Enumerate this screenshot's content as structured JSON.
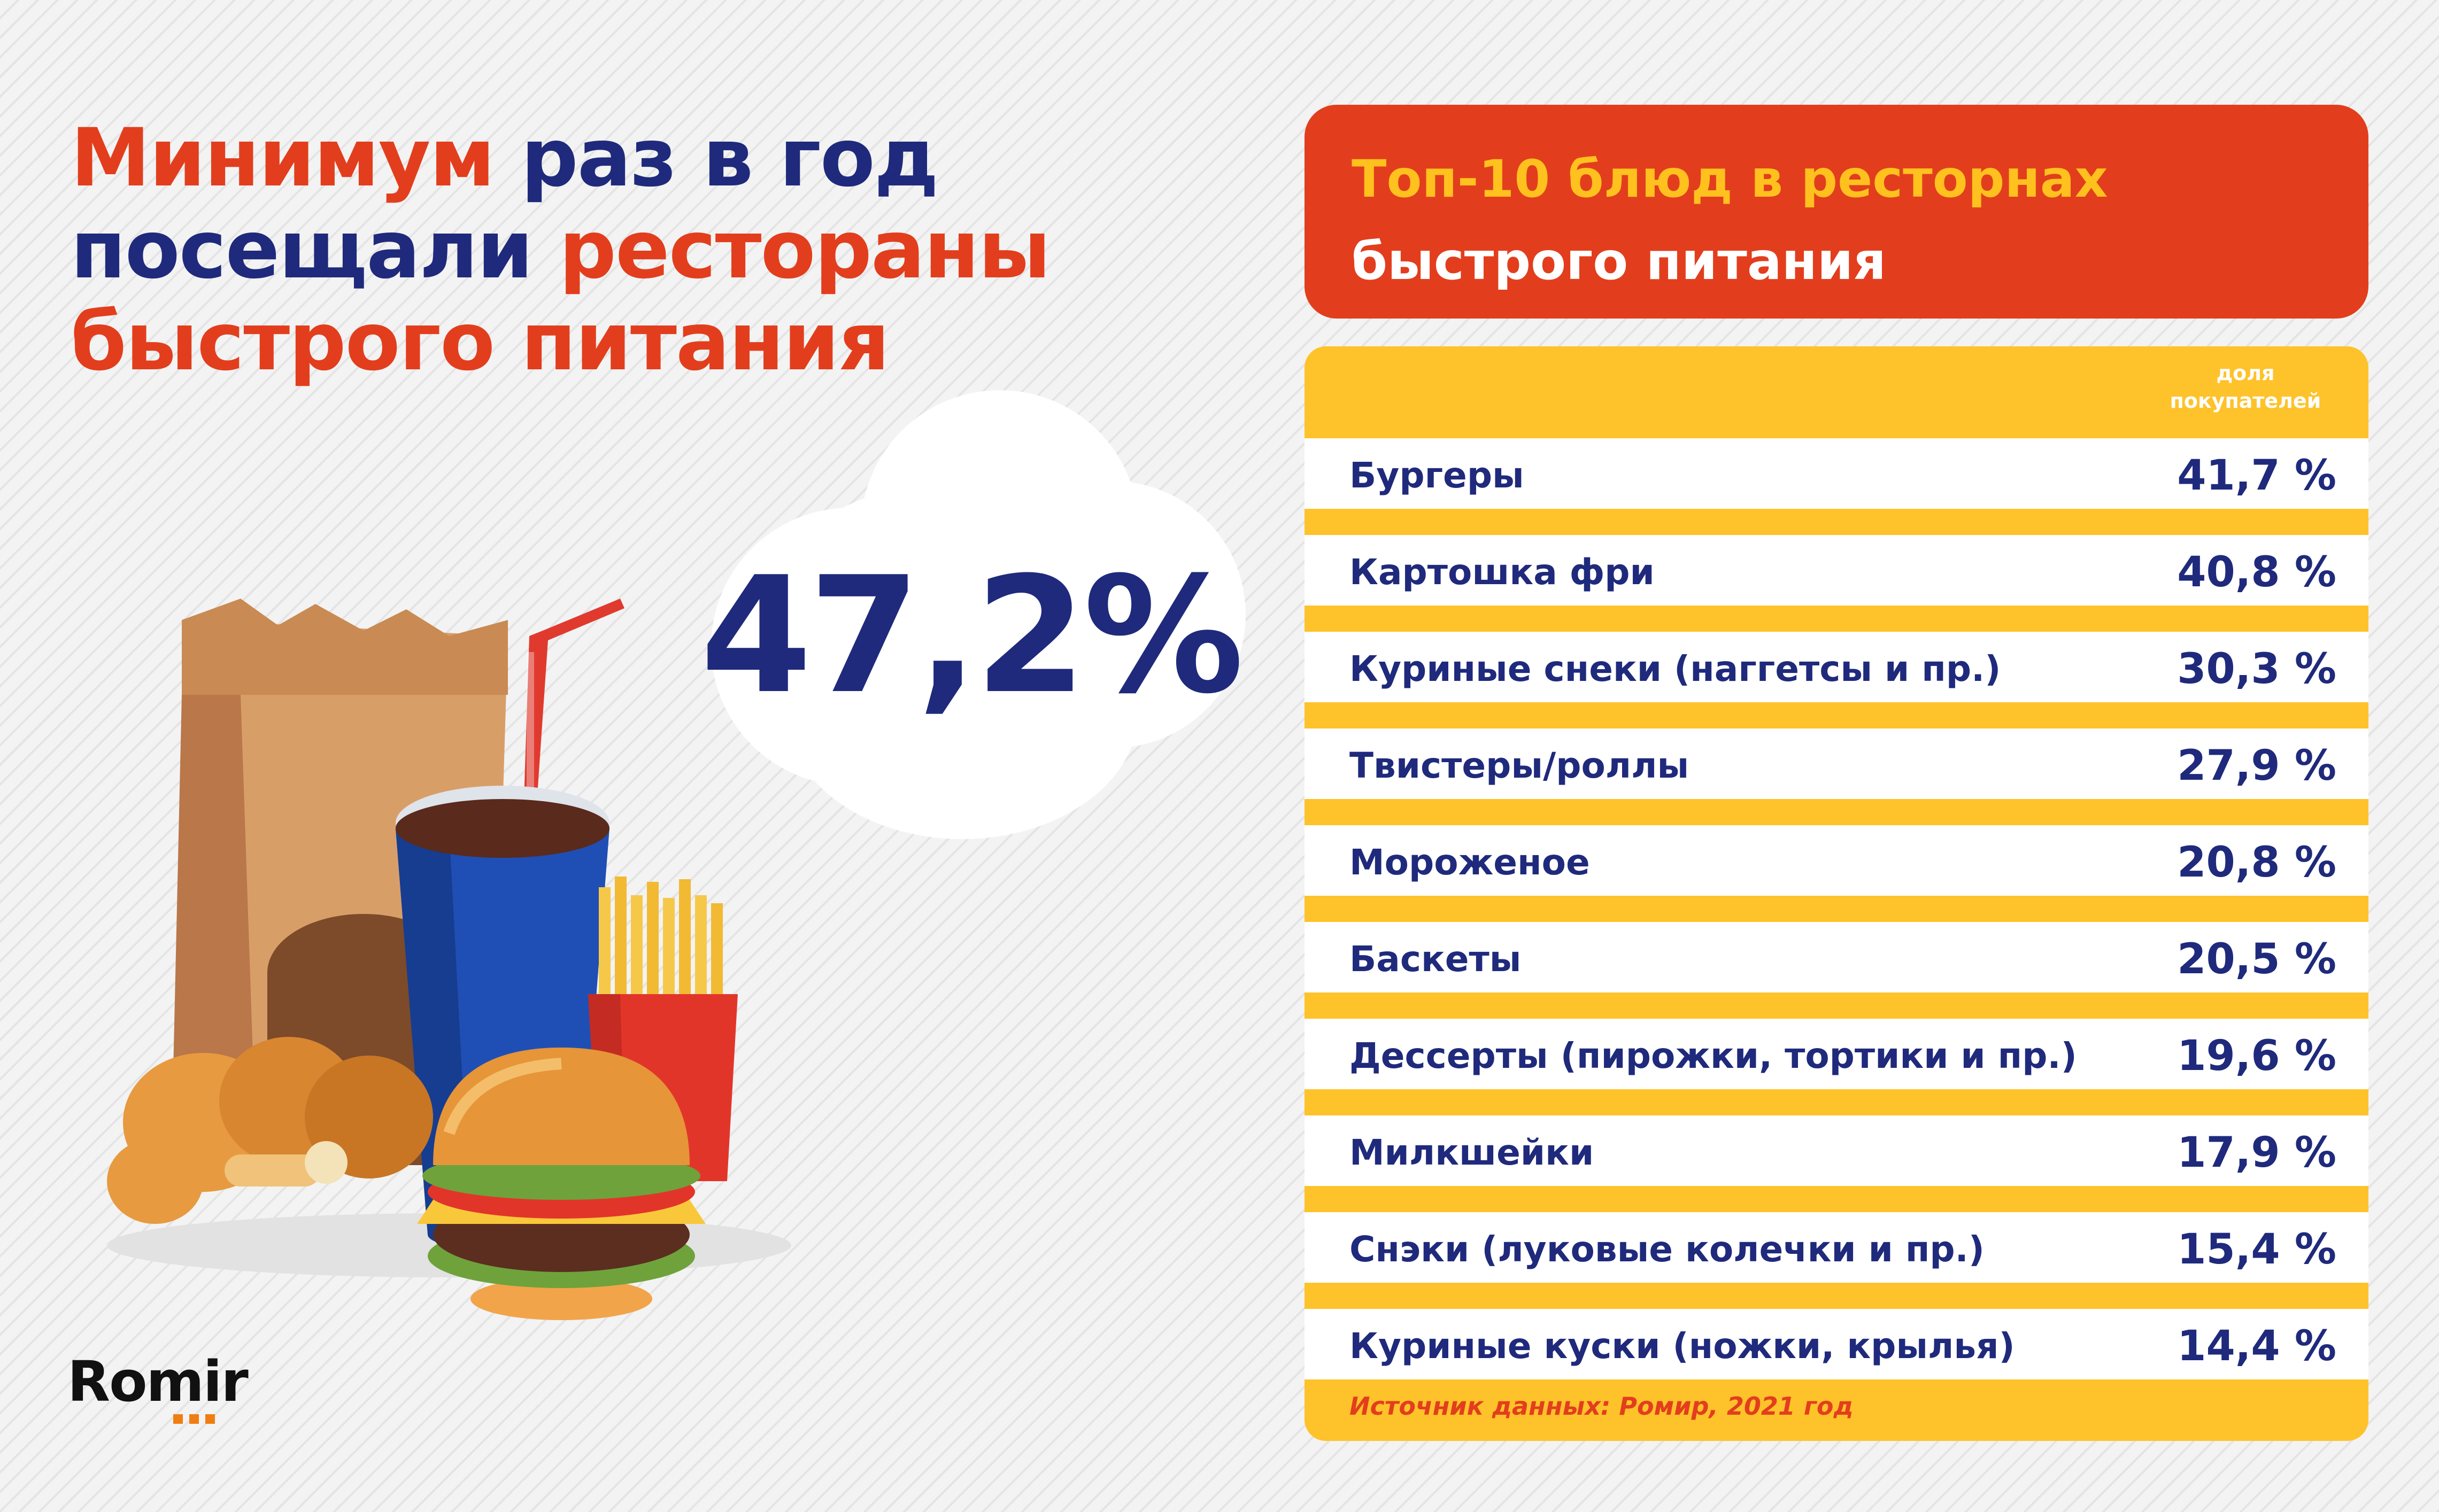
{
  "headline": {
    "w1": "Минимум",
    "w2": "раз в год",
    "w3": "посещали",
    "w4": "рестораны",
    "w5": "быстрого питания"
  },
  "big_stat": "47,2%",
  "logo": "Romir",
  "table": {
    "title_line1": "Топ-10 блюд в ресторнах",
    "title_line2": "быстрого питания",
    "column_header_line1": "доля",
    "column_header_line2": "покупателей",
    "source": "Источник данных: Ромир, 2021 год"
  },
  "chart_data": {
    "type": "table",
    "title": "Топ-10 блюд в ресторнах быстрого питания",
    "columns": [
      "",
      "доля покупателей"
    ],
    "categories": [
      "Бургеры",
      "Картошка фри",
      "Куриные снеки (наггетсы и пр.)",
      "Твистеры/роллы",
      "Мороженое",
      "Баскеты",
      "Десcерты (пирожки, тортики и пр.)",
      "Милкшейки",
      "Снэки (луковые колечки и пр.)",
      "Куриные куски (ножки, крылья)"
    ],
    "values": [
      41.7,
      40.8,
      30.3,
      27.9,
      20.8,
      20.5,
      19.6,
      17.9,
      15.4,
      14.4
    ],
    "value_labels": [
      "41,7 %",
      "40,8 %",
      "30,3 %",
      "27,9 %",
      "20,8 %",
      "20,5 %",
      "19,6 %",
      "17,9 %",
      "15,4 %",
      "14,4 %"
    ]
  },
  "colors": {
    "red": "#e23e1d",
    "navy": "#1f2a7c",
    "yellow": "#fec22a",
    "title_yellow": "#ffc11e",
    "logo_orange": "#f07d12"
  },
  "icons": [
    "paper-bag-icon",
    "soda-cup-icon",
    "straw-icon",
    "fries-icon",
    "burger-icon",
    "chicken-leg-icon"
  ]
}
